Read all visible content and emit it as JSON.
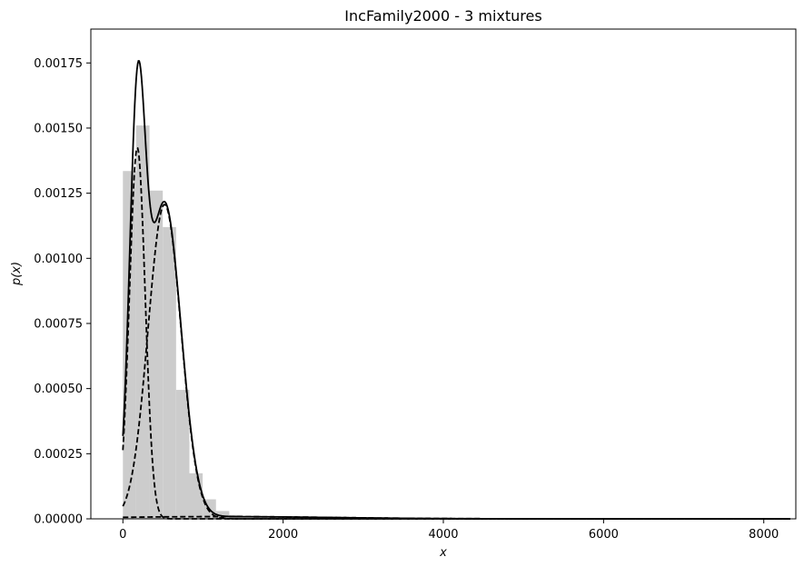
{
  "chart_data": {
    "type": "histogram",
    "title": "IncFamily2000 - 3 mixtures",
    "xlabel": "x",
    "ylabel": "p(x)",
    "xlim": [
      -400,
      8400
    ],
    "ylim": [
      0,
      0.00188
    ],
    "x_ticks": [
      0,
      2000,
      4000,
      6000,
      8000
    ],
    "x_tick_labels": [
      "0",
      "2000",
      "4000",
      "6000",
      "8000"
    ],
    "y_ticks": [
      0,
      0.00025,
      0.0005,
      0.00075,
      0.001,
      0.00125,
      0.0015,
      0.00175
    ],
    "y_tick_labels": [
      "0.00000",
      "0.00025",
      "0.00050",
      "0.00075",
      "0.00100",
      "0.00125",
      "0.00150",
      "0.00175"
    ],
    "grid": false,
    "legend": "none",
    "histogram": {
      "color": "#cccccc",
      "bin_width": 166,
      "bins_start": [
        0,
        166,
        332,
        498,
        664,
        830,
        996,
        1162,
        1328,
        1494,
        1660,
        1826,
        1992,
        2158,
        2324,
        2490,
        2656,
        2822
      ],
      "densities": [
        0.001335,
        0.00151,
        0.00126,
        0.00112,
        0.000495,
        0.000175,
        7.5e-05,
        3e-05,
        1.5e-05,
        1e-05,
        8e-06,
        6e-06,
        5e-06,
        4e-06,
        3e-06,
        3e-06,
        2e-06,
        2e-06
      ]
    },
    "mixture_components": [
      {
        "weight": 0.35,
        "mean": 180,
        "std": 98
      },
      {
        "weight": 0.62,
        "mean": 520,
        "std": 205
      },
      {
        "weight": 0.03,
        "mean": 1200,
        "std": 1400
      }
    ],
    "series": [
      {
        "style": "solid",
        "color": "#000000",
        "role": "mixture total"
      },
      {
        "style": "dashed",
        "color": "#000000",
        "role": "component 1"
      },
      {
        "style": "dashed",
        "color": "#000000",
        "role": "component 2"
      },
      {
        "style": "dashed",
        "color": "#000000",
        "role": "component 3"
      }
    ],
    "curve_x_range": [
      0,
      8330
    ]
  }
}
